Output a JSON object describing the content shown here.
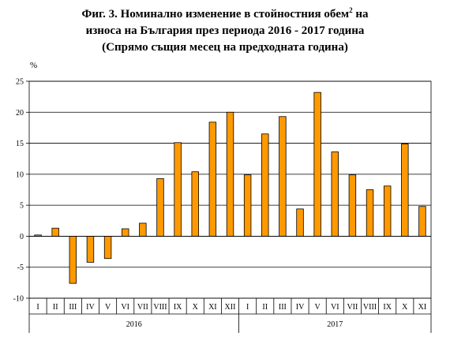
{
  "title": {
    "line1_main": "Фиг. 3. Номинално изменение в стойностния обем",
    "line1_sup": "2",
    "line1_end": " на",
    "line2": "износа на България през периода 2016 - 2017 година",
    "line3": "(Спрямо същия месец на предходната година)"
  },
  "chart_data": {
    "type": "bar",
    "ylabel": "%",
    "ylim": [
      -10,
      25
    ],
    "yticks": [
      -10,
      -5,
      0,
      5,
      10,
      15,
      20,
      25
    ],
    "grid": true,
    "bar_color": "#ff9900",
    "bar_stroke": "#000000",
    "categories": [
      "I",
      "II",
      "III",
      "IV",
      "V",
      "VI",
      "VII",
      "VIII",
      "IX",
      "X",
      "XI",
      "XII",
      "I",
      "II",
      "III",
      "IV",
      "V",
      "VI",
      "VII",
      "VIII",
      "IX",
      "X",
      "XI"
    ],
    "groups": [
      {
        "label": "2016",
        "count": 12
      },
      {
        "label": "2017",
        "count": 11
      }
    ],
    "values": [
      0.2,
      1.3,
      -7.6,
      -4.2,
      -3.6,
      1.2,
      2.1,
      9.3,
      15.1,
      10.4,
      18.4,
      20.0,
      9.9,
      16.5,
      19.3,
      4.4,
      23.2,
      13.6,
      9.9,
      7.5,
      8.1,
      14.9,
      4.8
    ]
  }
}
